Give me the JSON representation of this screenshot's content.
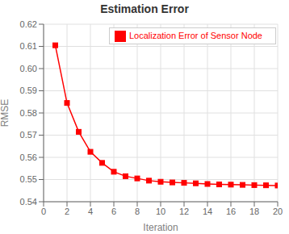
{
  "chart_data": {
    "type": "line",
    "title": "Estimation Error",
    "xlabel": "Iteration",
    "ylabel": "RMSE",
    "x": [
      1,
      2,
      3,
      4,
      5,
      6,
      7,
      8,
      9,
      10,
      11,
      12,
      13,
      14,
      15,
      16,
      17,
      18,
      19,
      20
    ],
    "series": [
      {
        "name": "Localization Error of Sensor Node",
        "color": "#FF0000",
        "marker": "square",
        "values": [
          0.6105,
          0.5845,
          0.5715,
          0.5625,
          0.5575,
          0.5535,
          0.5515,
          0.5505,
          0.5495,
          0.549,
          0.5487,
          0.5485,
          0.5483,
          0.548,
          0.5478,
          0.5477,
          0.5476,
          0.5475,
          0.5474,
          0.5473
        ]
      }
    ],
    "xlim": [
      0,
      20
    ],
    "ylim": [
      0.54,
      0.62
    ],
    "xticks": [
      0,
      2,
      4,
      6,
      8,
      10,
      12,
      14,
      16,
      18,
      20
    ],
    "yticks": [
      0.54,
      0.55,
      0.56,
      0.57,
      0.58,
      0.59,
      {
        "value": 0.6,
        "label": "0.60"
      },
      0.61,
      0.62
    ],
    "grid": true,
    "legend": "upper right"
  }
}
